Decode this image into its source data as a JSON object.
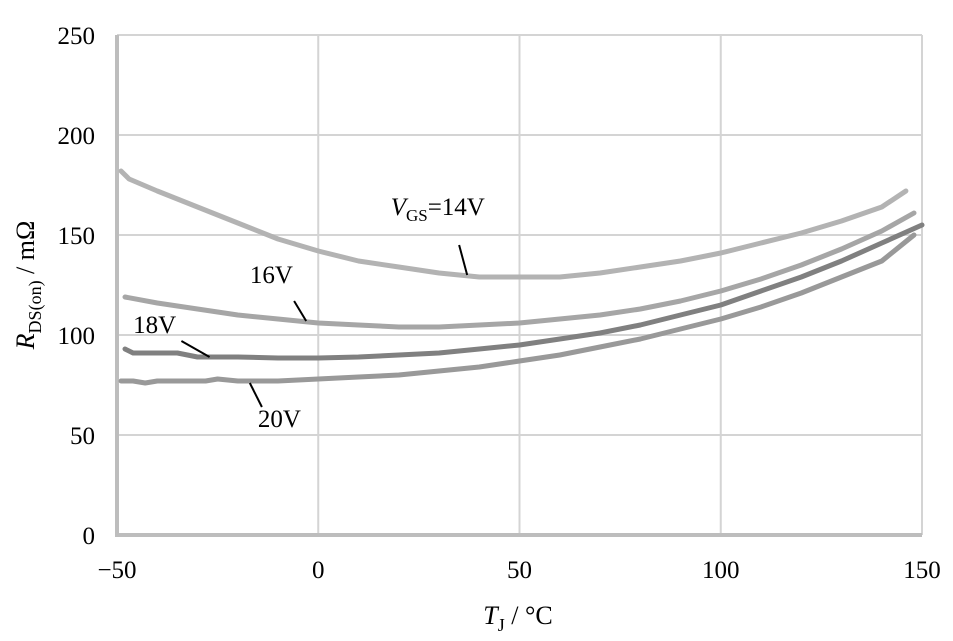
{
  "chart_data": {
    "type": "line",
    "xlabel": {
      "symbol": "T",
      "subscript": "J",
      "unit": " / °C"
    },
    "ylabel": {
      "symbol": "R",
      "subscript": "DS(on)",
      "unit": " / mΩ"
    },
    "xlim": [
      -50,
      150
    ],
    "ylim": [
      0,
      250
    ],
    "x_ticks": [
      -50,
      0,
      50,
      100,
      150
    ],
    "x_tick_labels": [
      "−50",
      "0",
      "50",
      "100",
      "150"
    ],
    "y_ticks": [
      0,
      50,
      100,
      150,
      200,
      250
    ],
    "y_tick_labels": [
      "0",
      "50",
      "100",
      "150",
      "200",
      "250"
    ],
    "grid": true,
    "series": [
      {
        "name": "V_GS=14V",
        "label_parts": {
          "symbol": "V",
          "subscript": "GS",
          "rest": "=14V"
        },
        "color": "#b3b3b3",
        "x": [
          -49,
          -47,
          -40,
          -30,
          -20,
          -10,
          0,
          10,
          20,
          30,
          40,
          50,
          60,
          70,
          80,
          90,
          100,
          110,
          120,
          130,
          140,
          146
        ],
        "y": [
          182,
          178,
          172,
          164,
          156,
          148,
          142,
          137,
          134,
          131,
          129,
          129,
          129,
          131,
          134,
          137,
          141,
          146,
          151,
          157,
          164,
          172
        ]
      },
      {
        "name": "16V",
        "label_parts": {
          "symbol": "",
          "subscript": "",
          "rest": "16V"
        },
        "color": "#a6a6a6",
        "x": [
          -48,
          -40,
          -30,
          -20,
          -10,
          0,
          10,
          20,
          30,
          40,
          50,
          60,
          70,
          80,
          90,
          100,
          110,
          120,
          130,
          140,
          148
        ],
        "y": [
          119,
          116,
          113,
          110,
          108,
          106,
          105,
          104,
          104,
          105,
          106,
          108,
          110,
          113,
          117,
          122,
          128,
          135,
          143,
          152,
          161
        ]
      },
      {
        "name": "18V",
        "label_parts": {
          "symbol": "",
          "subscript": "",
          "rest": "18V"
        },
        "color": "#808080",
        "x": [
          -48,
          -46,
          -40,
          -35,
          -30,
          -20,
          -10,
          0,
          10,
          20,
          30,
          40,
          50,
          60,
          70,
          80,
          90,
          100,
          110,
          120,
          130,
          140,
          150
        ],
        "y": [
          93,
          91,
          91,
          91,
          89,
          89,
          88.5,
          88.5,
          89,
          90,
          91,
          93,
          95,
          98,
          101,
          105,
          110,
          115,
          122,
          129,
          137,
          146,
          155
        ]
      },
      {
        "name": "20V",
        "label_parts": {
          "symbol": "",
          "subscript": "",
          "rest": "20V"
        },
        "color": "#999999",
        "x": [
          -49,
          -46,
          -43,
          -40,
          -35,
          -28,
          -25,
          -20,
          -10,
          0,
          10,
          20,
          30,
          40,
          50,
          60,
          70,
          80,
          90,
          100,
          110,
          120,
          130,
          140,
          148
        ],
        "y": [
          77,
          77,
          76,
          77,
          77,
          77,
          78,
          77,
          77,
          78,
          79,
          80,
          82,
          84,
          87,
          90,
          94,
          98,
          103,
          108,
          114,
          121,
          129,
          137,
          150
        ]
      }
    ],
    "annotations": [
      {
        "series": "V_GS=14V",
        "text_x": 18,
        "text_y": 160,
        "anchor": "start",
        "leader_from": [
          35,
          145
        ],
        "leader_to": [
          37,
          130
        ]
      },
      {
        "series": "16V",
        "text_x": -17,
        "text_y": 126,
        "anchor": "start",
        "leader_from": [
          -6,
          117
        ],
        "leader_to": [
          -3,
          107
        ]
      },
      {
        "series": "18V",
        "text_x": -46,
        "text_y": 101,
        "anchor": "start",
        "leader_from": [
          -34,
          97
        ],
        "leader_to": [
          -27,
          89
        ]
      },
      {
        "series": "20V",
        "text_x": -15,
        "text_y": 54,
        "anchor": "start",
        "leader_from": [
          -14,
          64
        ],
        "leader_to": [
          -17,
          76
        ]
      }
    ]
  }
}
